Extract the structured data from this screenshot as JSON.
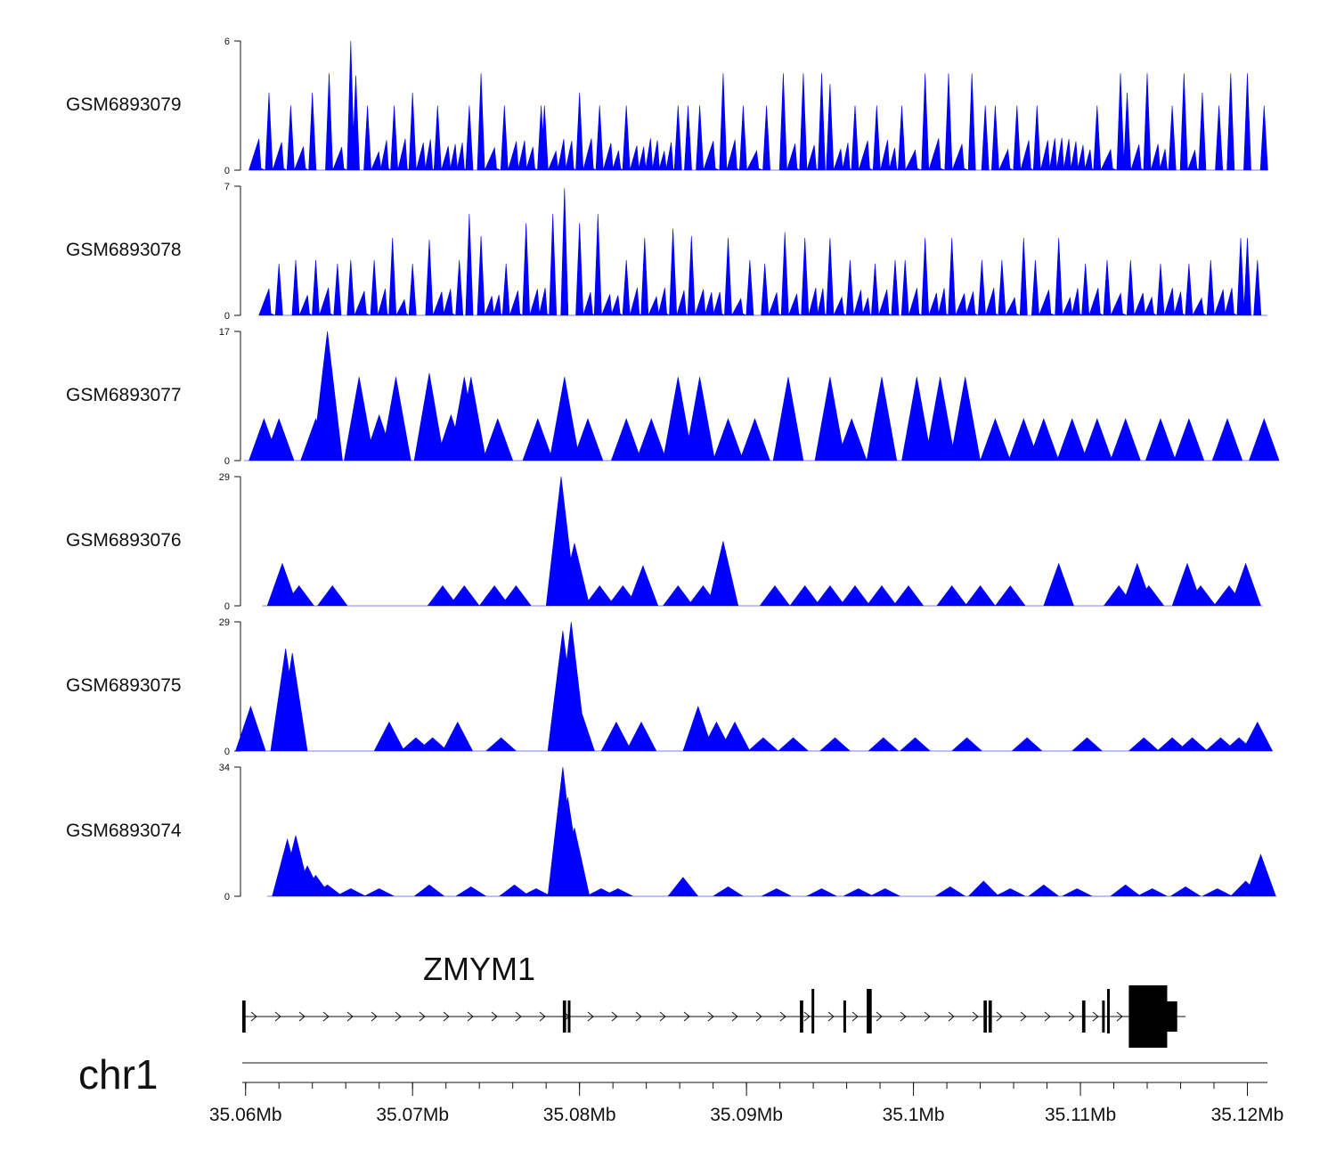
{
  "chart_data": {
    "type": "area",
    "genome_view": true,
    "chromosome": "chr1",
    "x_range_mb": [
      35.0598,
      35.1212
    ],
    "fill_color": "#0000ff",
    "tracks": [
      {
        "name": "GSM6893079",
        "ymax": 6,
        "ymin": 0,
        "baseline": 1.5,
        "peaks": [
          [
            35.0614,
            3.6
          ],
          [
            35.0627,
            3
          ],
          [
            35.064,
            3.6
          ],
          [
            35.065,
            4.5
          ],
          [
            35.0663,
            6.0
          ],
          [
            35.0666,
            4.4
          ],
          [
            35.0673,
            3.0
          ],
          [
            35.0689,
            3.0
          ],
          [
            35.07,
            3.6
          ],
          [
            35.0715,
            3.0
          ],
          [
            35.0734,
            3.0
          ],
          [
            35.0741,
            4.5
          ],
          [
            35.0755,
            3.0
          ],
          [
            35.0777,
            3.0
          ],
          [
            35.0779,
            3.0
          ],
          [
            35.08,
            3.6
          ],
          [
            35.0812,
            3.0
          ],
          [
            35.0828,
            3.0
          ],
          [
            35.0859,
            3.0
          ],
          [
            35.0865,
            3.0
          ],
          [
            35.0872,
            3.0
          ],
          [
            35.0886,
            4.5
          ],
          [
            35.0898,
            3.0
          ],
          [
            35.0912,
            3.0
          ],
          [
            35.0922,
            4.5
          ],
          [
            35.0934,
            4.5
          ],
          [
            35.0945,
            4.5
          ],
          [
            35.095,
            4.0
          ],
          [
            35.0965,
            3.0
          ],
          [
            35.0978,
            3.0
          ],
          [
            35.0993,
            3.0
          ],
          [
            35.1007,
            4.5
          ],
          [
            35.1021,
            4.5
          ],
          [
            35.1035,
            4.5
          ],
          [
            35.1043,
            3.0
          ],
          [
            35.1049,
            3.0
          ],
          [
            35.1062,
            3.0
          ],
          [
            35.1074,
            3.0
          ],
          [
            35.111,
            3.0
          ],
          [
            35.1124,
            4.5
          ],
          [
            35.1128,
            3.6
          ],
          [
            35.114,
            4.5
          ],
          [
            35.1155,
            3.0
          ],
          [
            35.1162,
            4.5
          ],
          [
            35.1173,
            3.6
          ],
          [
            35.1183,
            3.0
          ],
          [
            35.119,
            4.5
          ],
          [
            35.12,
            4.5
          ],
          [
            35.121,
            3.0
          ]
        ]
      },
      {
        "name": "GSM6893078",
        "ymax": 7,
        "ymin": 0,
        "baseline": 1.5,
        "peaks": [
          [
            35.062,
            2.8
          ],
          [
            35.063,
            3.0
          ],
          [
            35.0642,
            3.0
          ],
          [
            35.0655,
            2.8
          ],
          [
            35.0663,
            3.0
          ],
          [
            35.0677,
            3.0
          ],
          [
            35.0688,
            4.2
          ],
          [
            35.07,
            2.8
          ],
          [
            35.071,
            4.1
          ],
          [
            35.0728,
            3.0
          ],
          [
            35.0734,
            5.5
          ],
          [
            35.0741,
            4.3
          ],
          [
            35.0756,
            2.8
          ],
          [
            35.0768,
            5.0
          ],
          [
            35.0784,
            5.5
          ],
          [
            35.0791,
            6.9
          ],
          [
            35.08,
            5.0
          ],
          [
            35.0811,
            5.5
          ],
          [
            35.0828,
            3.0
          ],
          [
            35.0839,
            4.2
          ],
          [
            35.0856,
            4.7
          ],
          [
            35.0867,
            4.3
          ],
          [
            35.0889,
            4.2
          ],
          [
            35.0902,
            3.0
          ],
          [
            35.0911,
            2.8
          ],
          [
            35.0923,
            4.5
          ],
          [
            35.0935,
            4.2
          ],
          [
            35.095,
            4.2
          ],
          [
            35.0962,
            3.0
          ],
          [
            35.0977,
            2.8
          ],
          [
            35.0989,
            3.0
          ],
          [
            35.0995,
            3.0
          ],
          [
            35.1007,
            4.2
          ],
          [
            35.1023,
            4.2
          ],
          [
            35.1041,
            3.0
          ],
          [
            35.1053,
            3.0
          ],
          [
            35.1066,
            4.2
          ],
          [
            35.1073,
            3.0
          ],
          [
            35.1087,
            4.2
          ],
          [
            35.1103,
            2.8
          ],
          [
            35.1116,
            3.0
          ],
          [
            35.113,
            3.0
          ],
          [
            35.1148,
            2.8
          ],
          [
            35.1165,
            2.8
          ],
          [
            35.1178,
            3.0
          ],
          [
            35.1196,
            4.2
          ],
          [
            35.12,
            4.2
          ],
          [
            35.1206,
            3.0
          ]
        ]
      },
      {
        "name": "GSM6893077",
        "ymax": 17,
        "ymin": 0,
        "baseline": 0,
        "peaks": [
          [
            35.0611,
            5.5
          ],
          [
            35.062,
            5.5
          ],
          [
            35.0642,
            5.5
          ],
          [
            35.0649,
            17.0
          ],
          [
            35.0668,
            11.0
          ],
          [
            35.068,
            6.0
          ],
          [
            35.069,
            11.0
          ],
          [
            35.071,
            11.5
          ],
          [
            35.0723,
            6.0
          ],
          [
            35.0731,
            11.0
          ],
          [
            35.0735,
            11.0
          ],
          [
            35.0751,
            5.5
          ],
          [
            35.0775,
            5.5
          ],
          [
            35.0791,
            11.0
          ],
          [
            35.0805,
            5.5
          ],
          [
            35.0828,
            5.5
          ],
          [
            35.0843,
            5.5
          ],
          [
            35.0859,
            11.0
          ],
          [
            35.0872,
            11.0
          ],
          [
            35.0889,
            5.5
          ],
          [
            35.0905,
            5.5
          ],
          [
            35.0925,
            11.0
          ],
          [
            35.095,
            11.0
          ],
          [
            35.0963,
            5.5
          ],
          [
            35.0981,
            11.0
          ],
          [
            35.1002,
            11.0
          ],
          [
            35.1016,
            11.0
          ],
          [
            35.1031,
            11.0
          ],
          [
            35.1049,
            5.5
          ],
          [
            35.1066,
            5.5
          ],
          [
            35.1078,
            5.5
          ],
          [
            35.1095,
            5.5
          ],
          [
            35.111,
            5.5
          ],
          [
            35.1127,
            5.5
          ],
          [
            35.1148,
            5.5
          ],
          [
            35.1165,
            5.5
          ],
          [
            35.1188,
            5.5
          ],
          [
            35.121,
            5.5
          ]
        ]
      },
      {
        "name": "GSM6893076",
        "ymax": 29,
        "ymin": 0,
        "baseline": 0,
        "peaks": [
          [
            35.0622,
            9.5
          ],
          [
            35.0632,
            4.5
          ],
          [
            35.0652,
            4.5
          ],
          [
            35.0718,
            4.5
          ],
          [
            35.0731,
            4.5
          ],
          [
            35.0749,
            4.5
          ],
          [
            35.0762,
            4.5
          ],
          [
            35.0789,
            29.0
          ],
          [
            35.0792,
            14.0
          ],
          [
            35.0797,
            14.0
          ],
          [
            35.0812,
            4.5
          ],
          [
            35.0826,
            4.5
          ],
          [
            35.0838,
            9.0
          ],
          [
            35.0859,
            4.5
          ],
          [
            35.0874,
            4.5
          ],
          [
            35.0886,
            14.5
          ],
          [
            35.0917,
            4.5
          ],
          [
            35.0935,
            4.5
          ],
          [
            35.095,
            4.5
          ],
          [
            35.0965,
            4.5
          ],
          [
            35.0981,
            4.5
          ],
          [
            35.0997,
            4.5
          ],
          [
            35.1023,
            4.5
          ],
          [
            35.104,
            4.5
          ],
          [
            35.1058,
            4.5
          ],
          [
            35.1087,
            9.5
          ],
          [
            35.1123,
            4.5
          ],
          [
            35.1134,
            9.5
          ],
          [
            35.1141,
            4.5
          ],
          [
            35.1164,
            9.5
          ],
          [
            35.1172,
            4.5
          ],
          [
            35.1189,
            4.5
          ],
          [
            35.1199,
            9.5
          ]
        ]
      },
      {
        "name": "GSM6893075",
        "ymax": 29,
        "ymin": 0,
        "baseline": 0,
        "peaks": [
          [
            35.0603,
            10.0
          ],
          [
            35.0624,
            23.0
          ],
          [
            35.0628,
            22.0
          ],
          [
            35.0686,
            6.5
          ],
          [
            35.0702,
            3.0
          ],
          [
            35.0712,
            3.0
          ],
          [
            35.0727,
            6.5
          ],
          [
            35.0753,
            3.0
          ],
          [
            35.079,
            27.0
          ],
          [
            35.0795,
            29.0
          ],
          [
            35.08,
            10.0
          ],
          [
            35.0822,
            6.5
          ],
          [
            35.0837,
            6.5
          ],
          [
            35.0871,
            10.0
          ],
          [
            35.0882,
            6.5
          ],
          [
            35.0893,
            6.5
          ],
          [
            35.091,
            3.0
          ],
          [
            35.0928,
            3.0
          ],
          [
            35.0953,
            3.0
          ],
          [
            35.0982,
            3.0
          ],
          [
            35.1001,
            3.0
          ],
          [
            35.1032,
            3.0
          ],
          [
            35.1068,
            3.0
          ],
          [
            35.1104,
            3.0
          ],
          [
            35.1138,
            3.0
          ],
          [
            35.1155,
            3.0
          ],
          [
            35.1167,
            3.0
          ],
          [
            35.1184,
            3.0
          ],
          [
            35.1195,
            3.0
          ],
          [
            35.1206,
            6.5
          ]
        ]
      },
      {
        "name": "GSM6893074",
        "ymax": 34,
        "ymin": 0,
        "baseline": 0,
        "peaks": [
          [
            35.0625,
            15.0
          ],
          [
            35.063,
            16.0
          ],
          [
            35.0637,
            8.0
          ],
          [
            35.0642,
            5.5
          ],
          [
            35.0649,
            3.0
          ],
          [
            35.0663,
            2.0
          ],
          [
            35.068,
            2.0
          ],
          [
            35.071,
            3.0
          ],
          [
            35.0735,
            2.5
          ],
          [
            35.0761,
            3.0
          ],
          [
            35.0774,
            2.0
          ],
          [
            35.079,
            34.0
          ],
          [
            35.0793,
            26.0
          ],
          [
            35.0797,
            18.0
          ],
          [
            35.0813,
            2.0
          ],
          [
            35.0823,
            2.0
          ],
          [
            35.0862,
            5.0
          ],
          [
            35.0889,
            2.5
          ],
          [
            35.0918,
            2.0
          ],
          [
            35.0945,
            2.0
          ],
          [
            35.0967,
            2.0
          ],
          [
            35.0983,
            2.0
          ],
          [
            35.1022,
            2.5
          ],
          [
            35.1042,
            4.0
          ],
          [
            35.1058,
            2.0
          ],
          [
            35.1078,
            3.0
          ],
          [
            35.1098,
            2.0
          ],
          [
            35.1127,
            3.0
          ],
          [
            35.1143,
            2.0
          ],
          [
            35.1163,
            2.5
          ],
          [
            35.1182,
            2.0
          ],
          [
            35.1199,
            4.0
          ],
          [
            35.1208,
            11.0
          ]
        ]
      }
    ],
    "gene": {
      "name": "ZMYM1",
      "strand": "+",
      "start_mb": 35.0598,
      "end_mb": 35.1163,
      "exons_mb": [
        [
          35.0598,
          35.06
        ],
        [
          35.079,
          35.0792
        ],
        [
          35.0793,
          35.0794
        ],
        [
          35.0932,
          35.0934
        ],
        [
          35.0939,
          35.094
        ],
        [
          35.0958,
          35.0959
        ],
        [
          35.0972,
          35.0975
        ],
        [
          35.1042,
          35.1044
        ],
        [
          35.1045,
          35.1047
        ],
        [
          35.1101,
          35.1103
        ],
        [
          35.1113,
          35.1114
        ],
        [
          35.1116,
          35.1117
        ],
        [
          35.1129,
          35.1152
        ],
        [
          35.1152,
          35.1158
        ]
      ]
    },
    "axis": {
      "ticks": [
        "35.06Mb",
        "35.07Mb",
        "35.08Mb",
        "35.09Mb",
        "35.1Mb",
        "35.11Mb",
        "35.12Mb"
      ],
      "tick_values_mb": [
        35.06,
        35.07,
        35.08,
        35.09,
        35.1,
        35.11,
        35.12
      ],
      "minor_step_mb": 0.002
    }
  }
}
